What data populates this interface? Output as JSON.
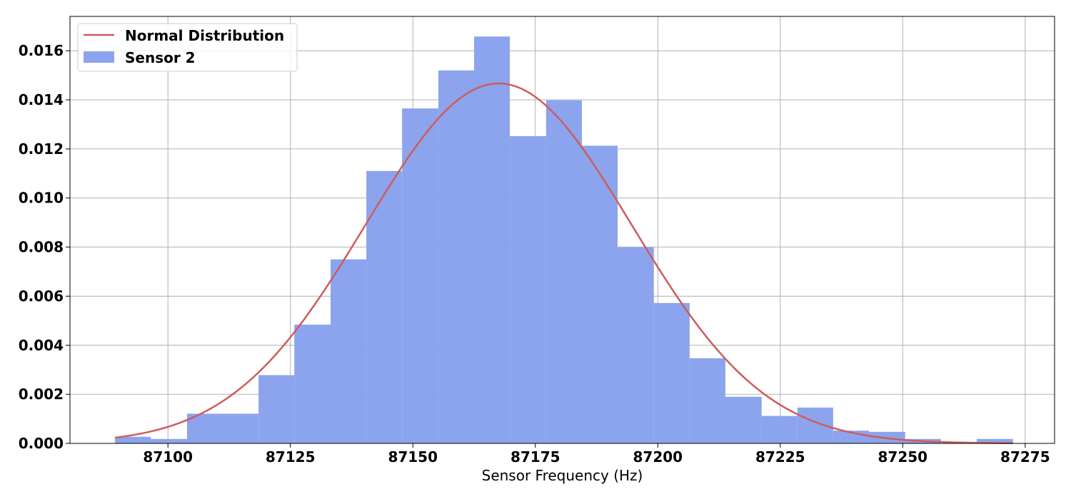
{
  "chart_data": {
    "type": "bar",
    "xlabel": "Sensor Frequency (Hz)",
    "ylabel": "",
    "xlim": [
      87080,
      87281
    ],
    "ylim": [
      0,
      0.0174
    ],
    "grid": true,
    "legend_position": "top-left",
    "x_ticks": [
      87100,
      87125,
      87150,
      87175,
      87200,
      87225,
      87250,
      87275
    ],
    "y_ticks": [
      0,
      0.002,
      0.004,
      0.006,
      0.008,
      0.01,
      0.012,
      0.014,
      0.016
    ],
    "x_tick_labels": [
      "87100",
      "87125",
      "87150",
      "87175",
      "87200",
      "87225",
      "87250",
      "87275"
    ],
    "y_tick_labels": [
      "0.000",
      "0.002",
      "0.004",
      "0.006",
      "0.008",
      "0.010",
      "0.012",
      "0.014",
      "0.016"
    ],
    "histogram": {
      "name": "Sensor 2",
      "color": "#8CA4EE",
      "bin_edges": [
        87089.2,
        87096.5,
        87103.9,
        87111.2,
        87118.5,
        87125.8,
        87133.2,
        87140.5,
        87147.8,
        87155.2,
        87162.5,
        87169.8,
        87177.2,
        87184.5,
        87191.8,
        87199.2,
        87206.5,
        87213.8,
        87221.2,
        87228.5,
        87235.8,
        87243.1,
        87250.5,
        87257.8,
        87265.1,
        87272.5
      ],
      "density": [
        0.00027,
        0.00018,
        0.00121,
        0.00121,
        0.00278,
        0.00484,
        0.0075,
        0.0111,
        0.01365,
        0.0152,
        0.01658,
        0.01252,
        0.01398,
        0.01213,
        0.008,
        0.00572,
        0.00347,
        0.0019,
        0.00112,
        0.00146,
        0.00052,
        0.00047,
        0.00018,
        0.0,
        0.00018
      ]
    },
    "normal_curve": {
      "name": "Normal Distribution",
      "color": "#CD5C5C",
      "mean": 87167.5,
      "std": 27.2,
      "x_range": [
        87089.2,
        87272.5
      ]
    },
    "legend": {
      "entries": [
        {
          "label": "Normal Distribution",
          "symbol": "line",
          "color": "#CD5C5C"
        },
        {
          "label": "Sensor 2",
          "symbol": "patch",
          "color": "#8CA4EE"
        }
      ]
    }
  }
}
